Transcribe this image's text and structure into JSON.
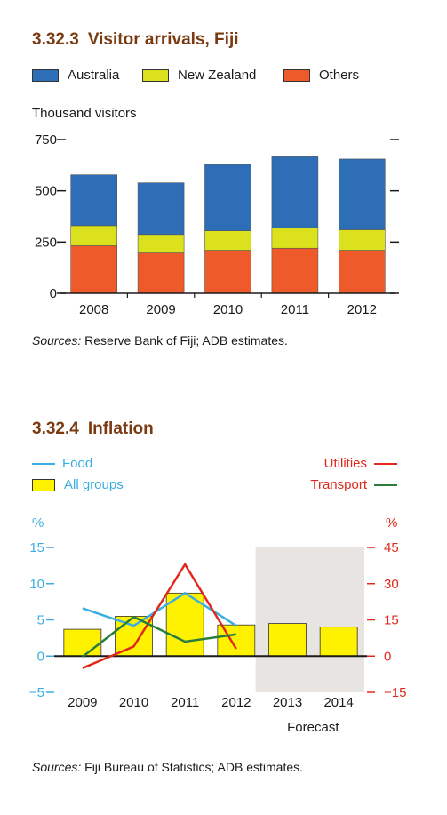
{
  "charts": [
    {
      "number": "3.32.3",
      "title_text": "Visitor arrivals, Fiji",
      "unit_label": "Thousand visitors",
      "source_label": "Sources:",
      "source_text": "Reserve Bank of Fiji; ADB estimates.",
      "legend": [
        {
          "label": "Australia",
          "color": "#2d6eb7"
        },
        {
          "label": "New Zealand",
          "color": "#dbe21d"
        },
        {
          "label": "Others",
          "color": "#ef5a2a"
        }
      ]
    },
    {
      "number": "3.32.4",
      "title_text": "Inflation",
      "left_unit": "%",
      "right_unit": "%",
      "forecast_label": "Forecast",
      "source_label": "Sources:",
      "source_text": "Fiji Bureau of Statistics; ADB estimates.",
      "legend": [
        {
          "label": "Food",
          "color": "#3aaee0"
        },
        {
          "label": "All groups",
          "color": "#fff200"
        },
        {
          "label": "Utilities",
          "color": "#e0291c"
        },
        {
          "label": "Transport",
          "color": "#2a7d3b"
        }
      ]
    }
  ],
  "chart_data": [
    {
      "type": "bar",
      "stacked": true,
      "title": "Visitor arrivals, Fiji",
      "ylabel": "Thousand visitors",
      "categories": [
        "2008",
        "2009",
        "2010",
        "2011",
        "2012"
      ],
      "ylim": [
        0,
        750
      ],
      "yticks": [
        0,
        250,
        500,
        750
      ],
      "ytick_labels": [
        "0",
        "250",
        "500",
        "750"
      ],
      "series": [
        {
          "name": "Others",
          "color": "#ef5a2a",
          "values": [
            232,
            197,
            210,
            220,
            210
          ]
        },
        {
          "name": "New Zealand",
          "color": "#dbe21d",
          "values": [
            98,
            90,
            95,
            100,
            100
          ]
        },
        {
          "name": "Australia",
          "color": "#2d6eb7",
          "values": [
            248,
            252,
            323,
            346,
            345
          ]
        }
      ]
    },
    {
      "type": "bar",
      "title": "Inflation",
      "categories": [
        "2009",
        "2010",
        "2011",
        "2012",
        "2013",
        "2014"
      ],
      "ylim": [
        -5,
        15
      ],
      "yticks": [
        -5,
        0,
        5,
        10,
        15
      ],
      "ytick_labels": [
        "−5",
        "0",
        "5",
        "10",
        "15"
      ],
      "y2lim": [
        -15,
        45
      ],
      "y2ticks": [
        -15,
        0,
        15,
        30,
        45
      ],
      "y2tick_labels": [
        "−15",
        "0",
        "15",
        "30",
        "45"
      ],
      "forecast_categories": [
        "2013",
        "2014"
      ],
      "bars": {
        "name": "All groups",
        "color": "#fff200",
        "values": [
          3.7,
          5.5,
          8.7,
          4.3,
          4.5,
          4.0
        ]
      },
      "lines": [
        {
          "name": "Food",
          "axis": "left",
          "color": "#3aaee0",
          "x": [
            "2009",
            "2010",
            "2011",
            "2012"
          ],
          "values": [
            6.6,
            4.2,
            8.7,
            4.2
          ]
        },
        {
          "name": "Utilities",
          "axis": "right",
          "color": "#e0291c",
          "x": [
            "2009",
            "2010",
            "2011",
            "2012"
          ],
          "values": [
            -5,
            4,
            38,
            3
          ]
        },
        {
          "name": "Transport",
          "axis": "left",
          "color": "#2a7d3b",
          "x": [
            "2009",
            "2010",
            "2011",
            "2012"
          ],
          "values": [
            -0.1,
            5.4,
            2.0,
            3.0
          ]
        }
      ]
    }
  ]
}
